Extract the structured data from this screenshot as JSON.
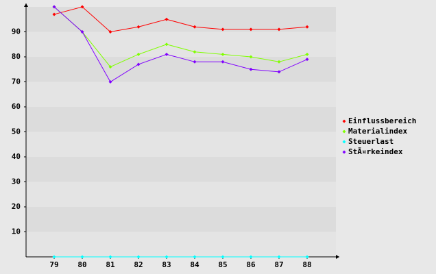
{
  "chart_data": {
    "type": "line",
    "categories": [
      "79",
      "80",
      "81",
      "82",
      "83",
      "84",
      "85",
      "86",
      "87",
      "88"
    ],
    "series": [
      {
        "name": "Einflussbereich",
        "color": "#ff0000",
        "values": [
          97,
          100,
          90,
          92,
          95,
          92,
          91,
          91,
          91,
          92
        ]
      },
      {
        "name": "Materialindex",
        "color": "#80ff00",
        "values": [
          100,
          90,
          76,
          81,
          85,
          82,
          81,
          80,
          78,
          81
        ]
      },
      {
        "name": "Steuerlast",
        "color": "#00ffff",
        "values": [
          0,
          0,
          0,
          0,
          0,
          0,
          0,
          0,
          0,
          0
        ]
      },
      {
        "name": "StÃ¤rkeindex",
        "color": "#8000ff",
        "values": [
          100,
          90,
          70,
          77,
          81,
          78,
          78,
          75,
          74,
          79
        ]
      }
    ],
    "ylim": [
      0,
      100
    ],
    "yticks": [
      10,
      20,
      30,
      40,
      50,
      60,
      70,
      80,
      90
    ],
    "grid": true,
    "legend": "right"
  }
}
